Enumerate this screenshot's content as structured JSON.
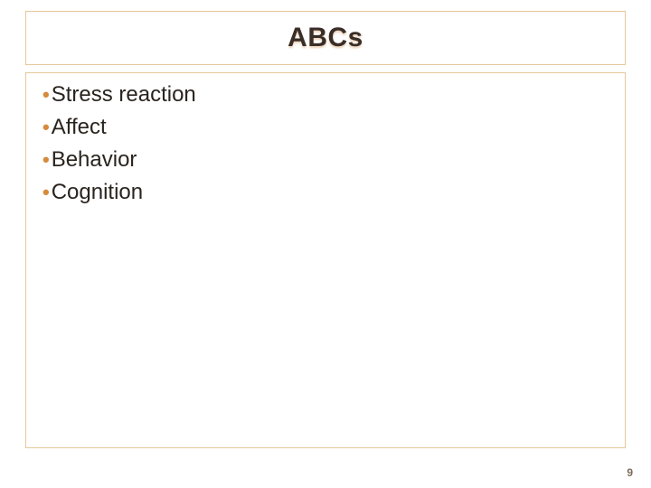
{
  "slide": {
    "title": "ABCs",
    "title_color": "#3a2e28",
    "title_fontsize": 30,
    "title_box_border": "#e6c89a",
    "content_box_border": "#e6c89a",
    "bullet_color": "#d68a3a",
    "text_color": "#2a241f",
    "bullet_fontsize": 24,
    "background_color": "#ffffff",
    "bullets": [
      "Stress reaction",
      "Affect",
      "Behavior",
      "Cognition"
    ],
    "page_number": "9",
    "page_number_color": "#7a6a5a"
  }
}
